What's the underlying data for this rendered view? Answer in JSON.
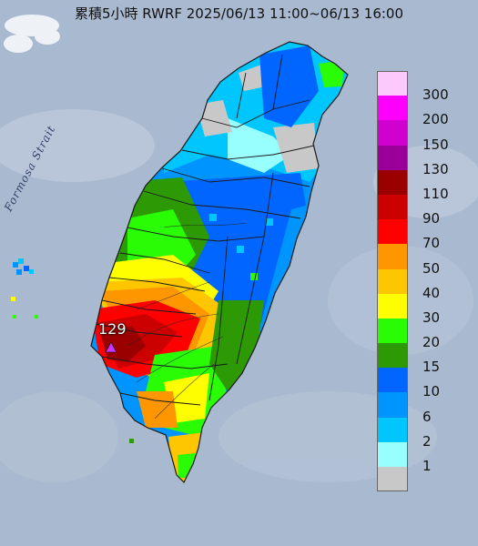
{
  "title": "累積5小時 RWRF 2025/06/13 11:00~06/13 16:00",
  "strait_label": "Formosa Strait",
  "max_value": "129",
  "legend": [
    {
      "label": "300",
      "color": "#fdc8fb"
    },
    {
      "label": "200",
      "color": "#fc00fc"
    },
    {
      "label": "150",
      "color": "#d000d0"
    },
    {
      "label": "130",
      "color": "#9a0099"
    },
    {
      "label": "110",
      "color": "#9b0000"
    },
    {
      "label": "90",
      "color": "#cc0000"
    },
    {
      "label": "70",
      "color": "#fe0000"
    },
    {
      "label": "50",
      "color": "#fe9600"
    },
    {
      "label": "40",
      "color": "#fec600"
    },
    {
      "label": "30",
      "color": "#fefe00"
    },
    {
      "label": "20",
      "color": "#2afc06"
    },
    {
      "label": "15",
      "color": "#2c9905"
    },
    {
      "label": "10",
      "color": "#0066ff"
    },
    {
      "label": "6",
      "color": "#0095fe"
    },
    {
      "label": "2",
      "color": "#00c6fe"
    },
    {
      "label": "1",
      "color": "#99fefe"
    },
    {
      "label": "",
      "color": "#c8c8c8"
    }
  ],
  "colors": {
    "sea": "#a9b9cf",
    "no_rain": "#c8c8c8",
    "max_marker": "#cc33ff"
  }
}
